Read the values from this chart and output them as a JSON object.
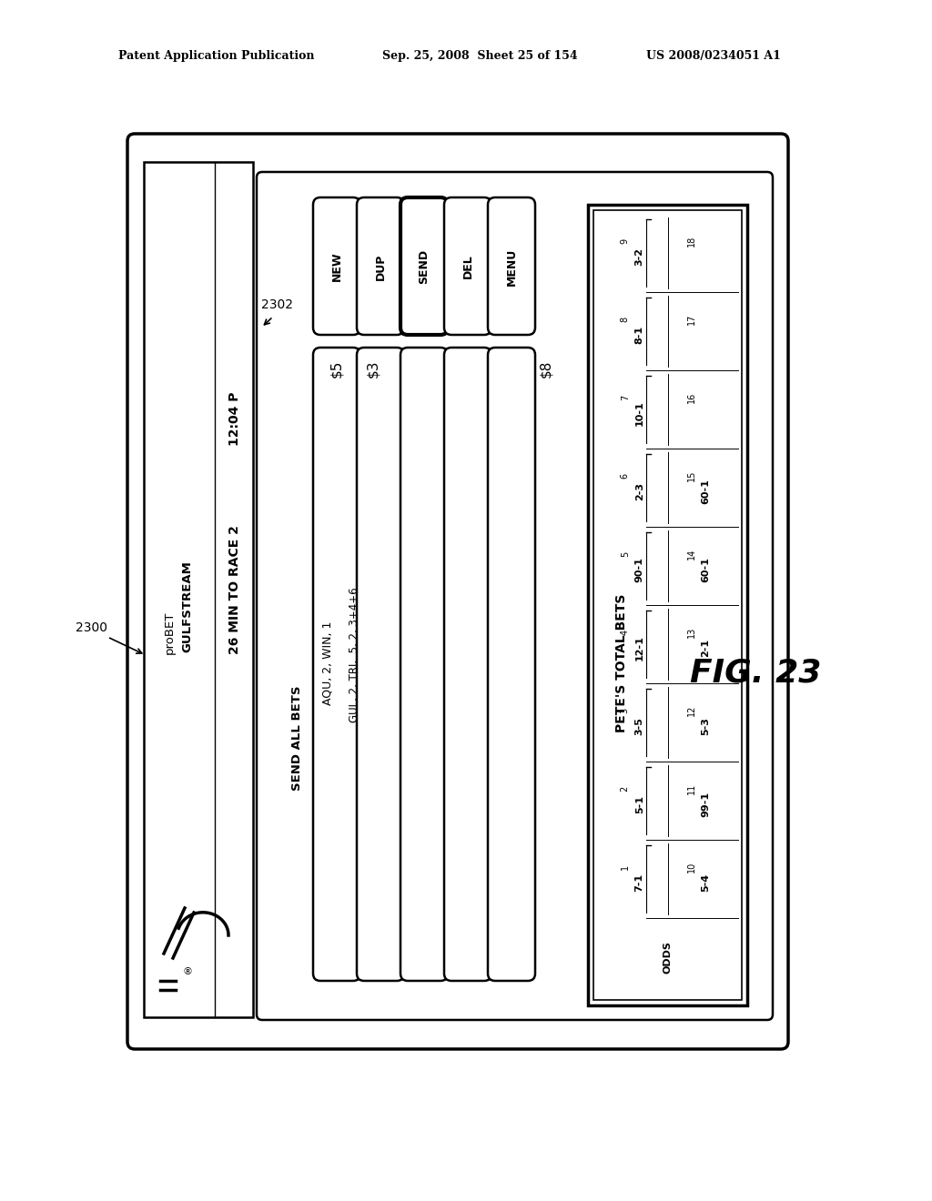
{
  "bg_color": "#ffffff",
  "header_left": "Patent Application Publication",
  "header_mid": "Sep. 25, 2008  Sheet 25 of 154",
  "header_right": "US 2008/0234051 A1",
  "fig_label": "FIG. 23",
  "ref_2300": "2300",
  "ref_2302": "2302",
  "left_text1": "proBET",
  "left_text2": "GULFSTREAM",
  "left_text3": "12:04 P",
  "left_text4": "26 MIN TO RACE 2",
  "send_all_bets": "SEND ALL BETS",
  "bet1": "AQU, 2, WIN, 1",
  "bet2": "GUL, 2, TRI,  5, 2, 3+4+6",
  "amount1": "$5",
  "amount2": "$3",
  "amount3": "$8",
  "buttons": [
    "NEW",
    "DUP",
    "SEND",
    "DEL",
    "MENU"
  ],
  "petes_label": "PETE'S TOTAL BETS",
  "odds_rows": [
    [
      "ODDS",
      null,
      null,
      null
    ],
    [
      "1",
      "7-1",
      "10",
      "5-4"
    ],
    [
      "2",
      "5-1",
      "11",
      "99-1"
    ],
    [
      "3",
      "3-5",
      "12",
      "5-3"
    ],
    [
      "4",
      "12-1",
      "13",
      "2-1"
    ],
    [
      "5",
      "90-1",
      "14",
      "60-1"
    ],
    [
      "6",
      "2-3",
      "15",
      "60-1"
    ],
    [
      "7",
      "10-1",
      "16",
      null
    ],
    [
      "8",
      "8-1",
      "17",
      null
    ],
    [
      "9",
      "3-2",
      "18",
      null
    ]
  ]
}
